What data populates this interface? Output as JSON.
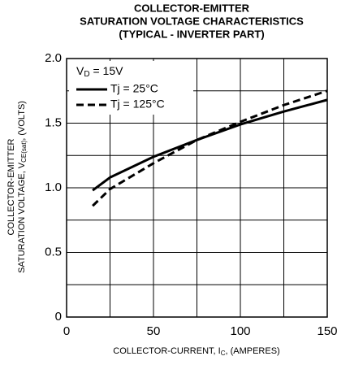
{
  "chart_data": {
    "type": "line",
    "title": [
      "COLLECTOR-EMITTER",
      "SATURATION VOLTAGE CHARACTERISTICS",
      "(TYPICAL - INVERTER PART)"
    ],
    "xlabel": [
      "COLLECTOR-CURRENT, I",
      "C",
      ", (AMPERES)"
    ],
    "ylabel": [
      "COLLECTOR-EMITTER",
      "SATURATION VOLTAGE, V",
      "CE(sat)",
      ", (VOLTS)"
    ],
    "annotation": [
      "V",
      "D",
      " = 15V"
    ],
    "x": [
      15,
      25,
      50,
      75,
      100,
      125,
      150
    ],
    "series": [
      {
        "name": "Tj = 25°C",
        "color": "#000000",
        "dash": "solid",
        "values": [
          0.98,
          1.08,
          1.24,
          1.37,
          1.49,
          1.59,
          1.68
        ]
      },
      {
        "name": "Tj = 125°C",
        "color": "#000000",
        "dash": "dashed",
        "values": [
          0.86,
          0.99,
          1.19,
          1.37,
          1.51,
          1.64,
          1.75
        ]
      }
    ],
    "xlim": [
      0,
      150
    ],
    "xticks": [
      0,
      50,
      100,
      150
    ],
    "xminor": [
      25,
      75,
      125
    ],
    "ylim": [
      0,
      2
    ],
    "yticks": [
      0,
      0.5,
      {
        "value": 1,
        "label": "1.0"
      },
      1.5,
      {
        "value": 2,
        "label": "2.0"
      }
    ],
    "yminor": [
      0.25,
      0.75,
      1.25,
      1.75
    ],
    "grid": true,
    "legend": "upper left"
  }
}
